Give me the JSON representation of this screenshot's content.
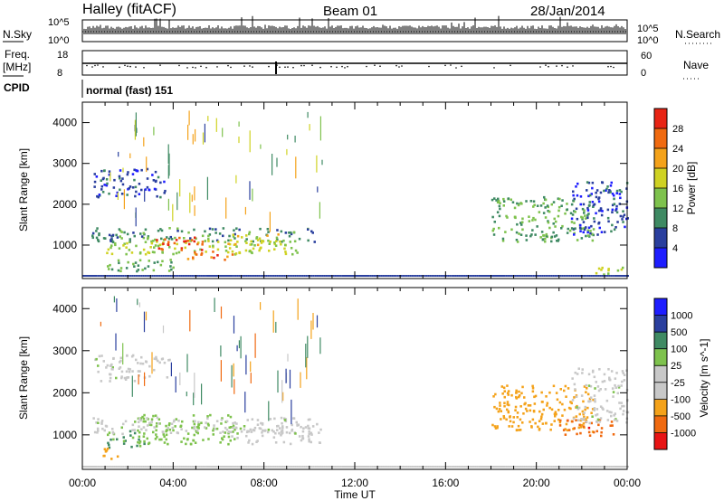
{
  "header": {
    "station": "Halley (fitACF)",
    "beam": "Beam 01",
    "date": "28/Jan/2014"
  },
  "status_panels": {
    "nsky_label": "N.Sky",
    "nsearch_label": "N.Search",
    "nsky_ticks": [
      "10^5",
      "10^0"
    ],
    "nsearch_ticks": [
      "10^5",
      "10^0"
    ],
    "freq_label_1": "Freq.",
    "freq_label_2": "[MHz]",
    "freq_ticks": [
      "18",
      "8"
    ],
    "nave_label": "Nave",
    "nave_ticks": [
      "60",
      "0"
    ],
    "cpid_label": "CPID",
    "cpid_value": "normal (fast) 151"
  },
  "colors": {
    "power_scale": [
      "#1e1eff",
      "#2a3f9e",
      "#3f8a63",
      "#7ec24d",
      "#cfd223",
      "#f4a21a",
      "#f06a10",
      "#e82414"
    ],
    "velocity_scale": [
      "#e81414",
      "#f06a10",
      "#f4a21a",
      "#c8c8c8",
      "#c8c8c8",
      "#7ec24d",
      "#3f8a63",
      "#2a3f9e",
      "#1e1eff"
    ],
    "ground_scatter": "#c0c0c0"
  },
  "chart_data": [
    {
      "type": "heatmap",
      "name": "power",
      "ylabel": "Slant Range [km]",
      "colorbar_label": "Power [dB]",
      "colorbar_ticks": [
        "4",
        "8",
        "12",
        "16",
        "20",
        "24",
        "28"
      ],
      "x_ticks": [
        "00:00",
        "04:00",
        "08:00",
        "12:00",
        "16:00",
        "20:00",
        "00:00"
      ],
      "y_ticks": [
        "1000",
        "2000",
        "3000",
        "4000"
      ],
      "xlim_hours": [
        0,
        24
      ],
      "ylim_km": [
        180,
        4500
      ],
      "patches": [
        {
          "x": [
            0.4,
            10.2
          ],
          "y": [
            1100,
            1450
          ],
          "v": 10
        },
        {
          "x": [
            1.0,
            9.5
          ],
          "y": [
            800,
            1150
          ],
          "v": 16
        },
        {
          "x": [
            3.2,
            5.4
          ],
          "y": [
            880,
            1220
          ],
          "v": 28
        },
        {
          "x": [
            4.6,
            6.6
          ],
          "y": [
            640,
            880
          ],
          "v": 26
        },
        {
          "x": [
            5.5,
            8.8
          ],
          "y": [
            1000,
            1300
          ],
          "v": 18
        },
        {
          "x": [
            0.4,
            3.6
          ],
          "y": [
            2200,
            2900
          ],
          "v": 6
        },
        {
          "x": [
            1.0,
            4.0
          ],
          "y": [
            380,
            700
          ],
          "v": 12
        },
        {
          "x": [
            18.0,
            22.5
          ],
          "y": [
            1100,
            2200
          ],
          "v": 12
        },
        {
          "x": [
            21.5,
            24.0
          ],
          "y": [
            1250,
            2600
          ],
          "v": 6
        },
        {
          "x": [
            22.5,
            23.8
          ],
          "y": [
            300,
            500
          ],
          "v": 16
        }
      ]
    },
    {
      "type": "heatmap",
      "name": "velocity",
      "ylabel": "Slant Range [km]",
      "xlabel": "Time UT",
      "colorbar_label": "Velocity [m s^-1]",
      "colorbar_ticks": [
        "1000",
        "500",
        "100",
        "25",
        "-25",
        "-100",
        "-500",
        "-1000"
      ],
      "x_ticks": [
        "00:00",
        "04:00",
        "08:00",
        "12:00",
        "16:00",
        "20:00",
        "00:00"
      ],
      "y_ticks": [
        "1000",
        "2000",
        "3000",
        "4000"
      ],
      "xlim_hours": [
        0,
        24
      ],
      "ylim_km": [
        180,
        4500
      ],
      "patches": [
        {
          "x": [
            2.4,
            6.8
          ],
          "y": [
            800,
            1500
          ],
          "v": 60
        },
        {
          "x": [
            1.0,
            2.8
          ],
          "y": [
            720,
            1150
          ],
          "v": 100
        },
        {
          "x": [
            6.5,
            10.5
          ],
          "y": [
            800,
            1300
          ],
          "v": 0
        },
        {
          "x": [
            0.5,
            3.8
          ],
          "y": [
            2300,
            2950
          ],
          "v": 0
        },
        {
          "x": [
            0.4,
            10.0
          ],
          "y": [
            1050,
            1450
          ],
          "v": 0
        },
        {
          "x": [
            0.8,
            1.8
          ],
          "y": [
            450,
            700
          ],
          "v": -200
        },
        {
          "x": [
            18.0,
            22.5
          ],
          "y": [
            1100,
            2200
          ],
          "v": -300
        },
        {
          "x": [
            21.0,
            23.5
          ],
          "y": [
            1000,
            1400
          ],
          "v": -800
        },
        {
          "x": [
            21.5,
            24.0
          ],
          "y": [
            1300,
            2600
          ],
          "v": 0
        }
      ]
    }
  ]
}
